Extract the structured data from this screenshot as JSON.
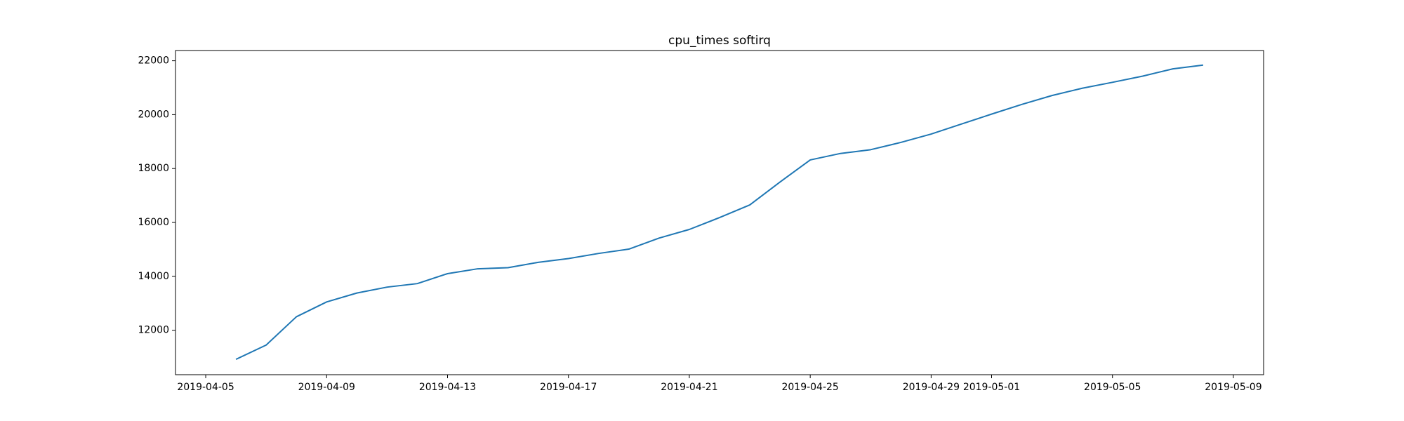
{
  "chart_data": {
    "type": "line",
    "title": "cpu_times softirq",
    "x": [
      "2019-04-06",
      "2019-04-07",
      "2019-04-08",
      "2019-04-09",
      "2019-04-10",
      "2019-04-11",
      "2019-04-12",
      "2019-04-13",
      "2019-04-14",
      "2019-04-15",
      "2019-04-16",
      "2019-04-17",
      "2019-04-18",
      "2019-04-19",
      "2019-04-20",
      "2019-04-21",
      "2019-04-22",
      "2019-04-23",
      "2019-04-24",
      "2019-04-25",
      "2019-04-26",
      "2019-04-27",
      "2019-04-28",
      "2019-04-29",
      "2019-04-30",
      "2019-05-01",
      "2019-05-02",
      "2019-05-03",
      "2019-05-04",
      "2019-05-05",
      "2019-05-06",
      "2019-05-07",
      "2019-05-08"
    ],
    "values": [
      10920,
      11450,
      12500,
      13050,
      13380,
      13600,
      13730,
      14100,
      14280,
      14320,
      14520,
      14660,
      14850,
      15010,
      15420,
      15740,
      16180,
      16650,
      17500,
      18320,
      18560,
      18700,
      18970,
      19280,
      19650,
      20020,
      20380,
      20710,
      20980,
      21200,
      21430,
      21700,
      21840
    ],
    "color": "#1f77b4",
    "xlim": [
      "2019-04-04",
      "2019-05-10"
    ],
    "xticks": [
      "2019-04-05",
      "2019-04-09",
      "2019-04-13",
      "2019-04-17",
      "2019-04-21",
      "2019-04-25",
      "2019-04-29",
      "2019-05-01",
      "2019-05-05",
      "2019-05-09"
    ],
    "ylim": [
      10350,
      22380
    ],
    "yticks": [
      12000,
      14000,
      16000,
      18000,
      20000,
      22000
    ],
    "grid": false
  }
}
